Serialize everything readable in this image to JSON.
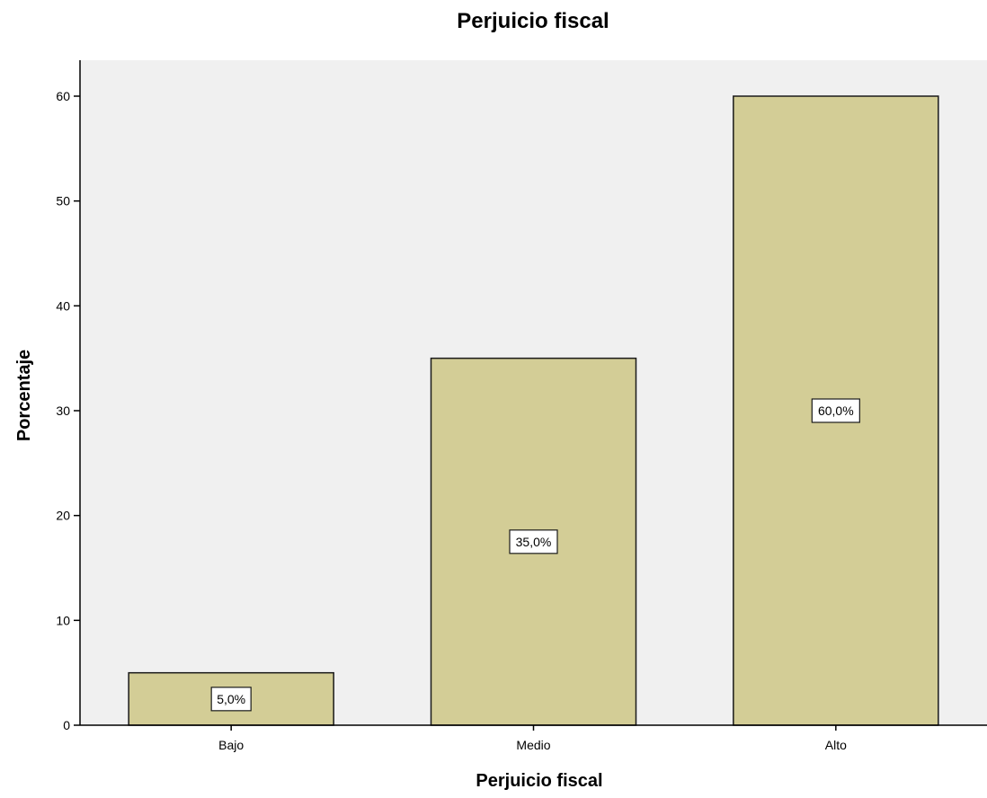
{
  "chart_data": {
    "type": "bar",
    "title": "Perjuicio fiscal",
    "xlabel": "Perjuicio fiscal",
    "ylabel": "Porcentaje",
    "categories": [
      "Bajo",
      "Medio",
      "Alto"
    ],
    "values": [
      5,
      35,
      60
    ],
    "data_labels": [
      "5,0%",
      "35,0%",
      "60,0%"
    ],
    "ylim": [
      0,
      63
    ],
    "yticks": [
      0,
      10,
      20,
      30,
      40,
      50,
      60
    ],
    "grid": false,
    "legend": "none",
    "colors": {
      "bar_fill": "#d3cd96",
      "bar_stroke": "#1a1a1a",
      "plot_background": "#f0f0f0",
      "axis": "#000000"
    }
  }
}
